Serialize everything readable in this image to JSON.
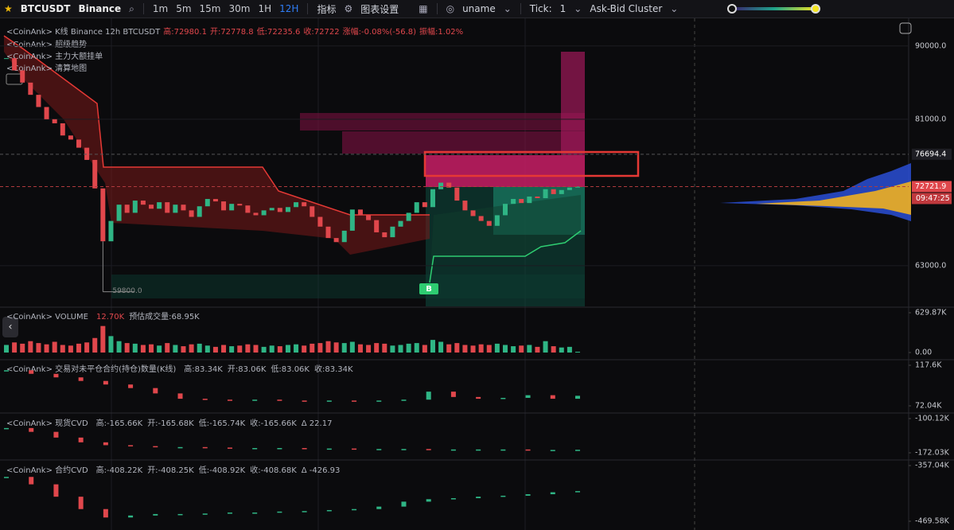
{
  "toolbar": {
    "symbol": "BTCUSDT",
    "exchange": "Binance",
    "intervals": [
      "1m",
      "5m",
      "15m",
      "30m",
      "1H",
      "12H"
    ],
    "indicators": "指标",
    "settings": "图表设置",
    "user": "uname",
    "tick_label": "Tick:",
    "tick_value": "1",
    "mode": "Ask-Bid Cluster"
  },
  "main_chart": {
    "legend": [
      "<CoinAnk> K线  Binance 12h BTCUSDT",
      "高:72980.1",
      "开:72778.8",
      "低:72235.6",
      "收:72722",
      "涨幅:-0.08%(-56.8)",
      "振幅:1.02%"
    ],
    "indicators": [
      "<CoinAnk> 超级趋势",
      "<CoinAnk> 主力大额挂单",
      "<CoinAnk> 清算地图"
    ],
    "ylim": [
      58000,
      93500
    ],
    "yticks": [
      {
        "value": 90000,
        "label": "90000.0"
      },
      {
        "value": 81000,
        "label": "81000.0"
      },
      {
        "value": 63000,
        "label": "63000.0"
      }
    ],
    "closes": [
      88500,
      87000,
      85500,
      84000,
      82500,
      81000,
      80500,
      79000,
      78500,
      77500,
      76000,
      72500,
      66000,
      68500,
      70500,
      69500,
      71000,
      70500,
      70000,
      70800,
      69500,
      70500,
      69800,
      69000,
      70300,
      71200,
      70900,
      69800,
      70600,
      70400,
      69500,
      69200,
      69800,
      70100,
      69600,
      70200,
      70800,
      70300,
      69000,
      67800,
      66400,
      65900,
      67300,
      69900,
      69200,
      68600,
      67100,
      66500,
      67800,
      68500,
      69500,
      70800,
      70200,
      72400,
      73200,
      72600,
      71000,
      69800,
      69100,
      68500,
      67900,
      69200,
      70600,
      71200,
      70700,
      71500,
      71300,
      72400,
      71800,
      72300,
      72600,
      72722
    ],
    "price_tags": [
      {
        "value": 76694.4,
        "label": "76694.4"
      },
      {
        "value": 72721.9,
        "label": "72721.9"
      }
    ],
    "countdown": "09:47:25",
    "low_marker": {
      "value": 59800,
      "label": "59800.0"
    },
    "signal": "B"
  },
  "panes": [
    {
      "title": "<CoinAnk> VOLUME",
      "fields": [
        "12.70K",
        "预估成交量:68.95K"
      ],
      "style": "bars",
      "ylim": [
        0,
        629.87
      ],
      "yticks": [
        {
          "value": 629.87,
          "label": "629.87K"
        },
        {
          "value": 0,
          "label": "0.00"
        }
      ],
      "values": [
        120,
        160,
        140,
        180,
        150,
        130,
        170,
        120,
        110,
        140,
        160,
        230,
        420,
        260,
        180,
        150,
        140,
        120,
        130,
        110,
        150,
        120,
        100,
        130,
        140,
        110,
        90,
        120,
        100,
        110,
        130,
        120,
        90,
        110,
        100,
        120,
        130,
        110,
        140,
        150,
        180,
        160,
        150,
        170,
        130,
        120,
        150,
        140,
        110,
        120,
        140,
        150,
        120,
        200,
        170,
        130,
        150,
        120,
        110,
        130,
        120,
        140,
        120,
        100,
        110,
        120,
        90,
        180,
        100,
        80,
        90,
        12.7
      ]
    },
    {
      "title": "<CoinAnk> 交易对未平仓合约(持仓)数量(K线)",
      "fields": [
        "高:83.34K",
        "开:83.06K",
        "低:83.06K",
        "收:83.34K"
      ],
      "style": "steps",
      "ylim": [
        72.04,
        117.6
      ],
      "yticks": [
        {
          "value": 117.6,
          "label": "117.6K"
        },
        {
          "value": 72.04,
          "label": "72.04K"
        }
      ],
      "values": [
        112,
        108,
        104,
        100,
        96,
        92,
        86,
        80,
        79,
        78,
        79,
        78,
        77,
        78,
        77,
        78,
        79,
        88,
        82,
        80,
        81,
        84,
        80,
        83.34
      ]
    },
    {
      "title": "<CoinAnk> 现货CVD",
      "fields": [
        "高:-165.66K",
        "开:-165.68K",
        "低:-165.74K",
        "收:-165.66K",
        "Δ 22.17"
      ],
      "style": "steps",
      "ylim": [
        -172.03,
        -100.12
      ],
      "yticks": [
        {
          "value": -100.12,
          "label": "-100.12K"
        },
        {
          "value": -172.03,
          "label": "-172.03K"
        }
      ],
      "values": [
        -120,
        -128,
        -140,
        -150,
        -156,
        -158,
        -160,
        -160,
        -161,
        -162,
        -162,
        -162,
        -163,
        -163,
        -164,
        -164,
        -164,
        -165,
        -165,
        -165,
        -165,
        -166,
        -166,
        -165.66
      ]
    },
    {
      "title": "<CoinAnk> 合约CVD",
      "fields": [
        "高:-408.22K",
        "开:-408.25K",
        "低:-408.92K",
        "收:-408.68K",
        "Δ -426.93"
      ],
      "style": "steps",
      "ylim": [
        -469.58,
        -357.04
      ],
      "yticks": [
        {
          "value": -357.04,
          "label": "-357.04K"
        },
        {
          "value": -469.58,
          "label": "-469.58K"
        }
      ],
      "values": [
        -380,
        -395,
        -420,
        -445,
        -462,
        -458,
        -455,
        -455,
        -454,
        -452,
        -452,
        -450,
        -449,
        -447,
        -445,
        -440,
        -430,
        -425,
        -423,
        -420,
        -418,
        -415,
        -411,
        -408.68
      ]
    }
  ]
}
